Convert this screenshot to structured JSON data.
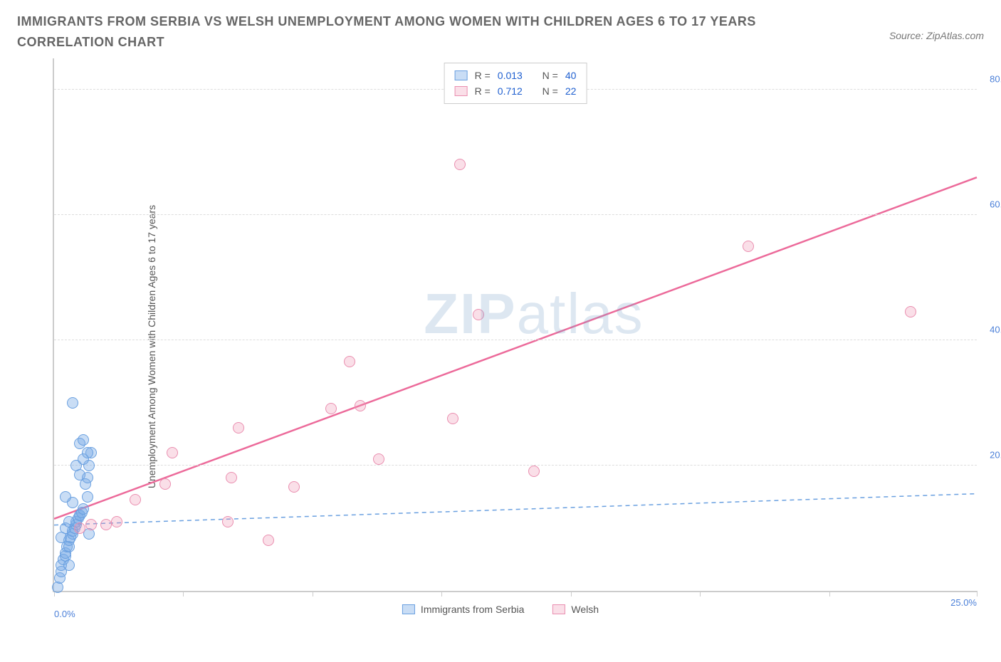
{
  "title": "IMMIGRANTS FROM SERBIA VS WELSH UNEMPLOYMENT AMONG WOMEN WITH CHILDREN AGES 6 TO 17 YEARS CORRELATION CHART",
  "source": "Source: ZipAtlas.com",
  "watermark_a": "ZIP",
  "watermark_b": "atlas",
  "ylabel": "Unemployment Among Women with Children Ages 6 to 17 years",
  "chart": {
    "type": "scatter",
    "background_color": "#ffffff",
    "grid_color": "#dddddd",
    "axis_color": "#cccccc",
    "xlim": [
      0,
      25
    ],
    "ylim": [
      0,
      85
    ],
    "xtick_positions": [
      0,
      3.5,
      7,
      10.5,
      14,
      17.5,
      21,
      25
    ],
    "xtick_labels_shown": {
      "0": "0.0%",
      "25": "25.0%"
    },
    "ytick_positions": [
      20,
      40,
      60,
      80
    ],
    "ytick_labels": [
      "20.0%",
      "40.0%",
      "60.0%",
      "80.0%"
    ],
    "marker_radius": 8,
    "series": [
      {
        "name": "Immigrants from Serbia",
        "key": "blue",
        "color_fill": "rgba(120,170,230,0.4)",
        "color_stroke": "#6aa0e0",
        "R": "0.013",
        "N": "40",
        "trend": {
          "style": "dashed",
          "width": 1.5,
          "color": "#6aa0e0",
          "points": [
            [
              0,
              10.5
            ],
            [
              25,
              15.5
            ]
          ]
        },
        "data": [
          [
            0.1,
            0.5
          ],
          [
            0.15,
            2
          ],
          [
            0.2,
            3
          ],
          [
            0.2,
            4
          ],
          [
            0.25,
            5
          ],
          [
            0.3,
            5.5
          ],
          [
            0.3,
            6
          ],
          [
            0.35,
            7
          ],
          [
            0.4,
            7
          ],
          [
            0.4,
            8
          ],
          [
            0.2,
            8.5
          ],
          [
            0.45,
            8.5
          ],
          [
            0.5,
            9
          ],
          [
            0.5,
            9.5
          ],
          [
            0.3,
            10
          ],
          [
            0.55,
            10
          ],
          [
            0.6,
            10.5
          ],
          [
            0.6,
            11
          ],
          [
            0.4,
            11
          ],
          [
            0.65,
            11.5
          ],
          [
            0.7,
            12
          ],
          [
            0.7,
            12
          ],
          [
            0.75,
            12.5
          ],
          [
            0.8,
            13
          ],
          [
            0.5,
            14
          ],
          [
            0.9,
            15
          ],
          [
            0.3,
            15
          ],
          [
            0.85,
            17
          ],
          [
            0.9,
            18
          ],
          [
            0.7,
            18.5
          ],
          [
            0.6,
            20
          ],
          [
            0.95,
            20
          ],
          [
            0.8,
            21
          ],
          [
            1.0,
            22
          ],
          [
            0.9,
            22
          ],
          [
            0.7,
            23.5
          ],
          [
            0.8,
            24
          ],
          [
            0.5,
            30
          ],
          [
            0.95,
            9
          ],
          [
            0.4,
            4
          ]
        ]
      },
      {
        "name": "Welsh",
        "key": "pink",
        "color_fill": "rgba(240,150,180,0.3)",
        "color_stroke": "#ea8fb0",
        "R": "0.712",
        "N": "22",
        "trend": {
          "style": "solid",
          "width": 2.5,
          "color": "#ec6a9a",
          "points": [
            [
              0,
              11.5
            ],
            [
              25,
              66
            ]
          ]
        },
        "data": [
          [
            0.7,
            10
          ],
          [
            1.0,
            10.5
          ],
          [
            1.4,
            10.5
          ],
          [
            1.7,
            11
          ],
          [
            2.2,
            14.5
          ],
          [
            3.0,
            17
          ],
          [
            3.2,
            22
          ],
          [
            4.7,
            11
          ],
          [
            4.8,
            18
          ],
          [
            5.0,
            26
          ],
          [
            5.8,
            8
          ],
          [
            6.5,
            16.5
          ],
          [
            7.5,
            29
          ],
          [
            8.0,
            36.5
          ],
          [
            8.3,
            29.5
          ],
          [
            8.8,
            21
          ],
          [
            10.8,
            27.5
          ],
          [
            11.5,
            44
          ],
          [
            11.0,
            68
          ],
          [
            13.0,
            19
          ],
          [
            18.8,
            55
          ],
          [
            23.2,
            44.5
          ]
        ]
      }
    ]
  },
  "legend_top": {
    "r_label": "R =",
    "n_label": "N ="
  },
  "legend_bottom": {
    "series1": "Immigrants from Serbia",
    "series2": "Welsh"
  }
}
